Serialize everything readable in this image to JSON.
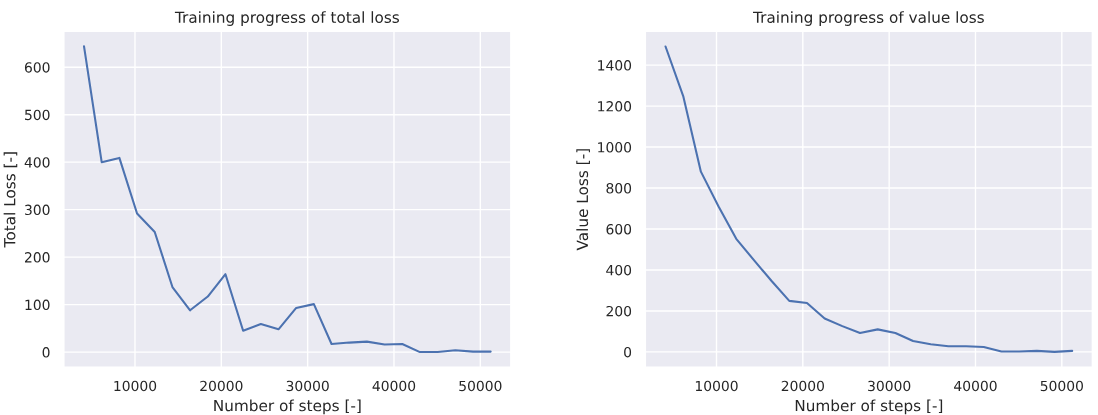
{
  "chart_data": [
    {
      "type": "line",
      "title": "Training progress of total loss",
      "xlabel": "Number of steps [-]",
      "ylabel": "Total Loss [-]",
      "x": [
        4096,
        6144,
        8192,
        10240,
        12288,
        14336,
        16384,
        18432,
        20480,
        22528,
        24576,
        26624,
        28672,
        30720,
        32768,
        34816,
        36864,
        38912,
        40960,
        43008,
        45056,
        47104,
        49152,
        51200
      ],
      "series": [
        {
          "color": "#4c72b0",
          "values": [
            644,
            400,
            409,
            292,
            253,
            137,
            88,
            117,
            164,
            45,
            59,
            48,
            93,
            101,
            17,
            20,
            22,
            16,
            17,
            0,
            0,
            4,
            1,
            1
          ]
        }
      ],
      "xlim": [
        1741,
        53555
      ],
      "xticks": [
        10000,
        20000,
        30000,
        40000,
        50000
      ],
      "ylim": [
        -32,
        676
      ],
      "yticks": [
        0,
        100,
        200,
        300,
        400,
        500,
        600
      ],
      "grid": true,
      "legend": false
    },
    {
      "type": "line",
      "title": "Training progress of value loss",
      "xlabel": "Number of steps [-]",
      "ylabel": "Value Loss [-]",
      "x": [
        4096,
        6144,
        8192,
        10240,
        12288,
        14336,
        16384,
        18432,
        20480,
        22528,
        24576,
        26624,
        28672,
        30720,
        32768,
        34816,
        36864,
        38912,
        40960,
        43008,
        45056,
        47104,
        49152,
        51200
      ],
      "series": [
        {
          "color": "#4c72b0",
          "values": [
            1491,
            1249,
            880,
            710,
            552,
            448,
            346,
            249,
            239,
            163,
            126,
            92,
            110,
            92,
            53,
            37,
            28,
            28,
            24,
            2,
            2,
            5,
            0,
            5
          ]
        }
      ],
      "xlim": [
        1741,
        53555
      ],
      "xticks": [
        10000,
        20000,
        30000,
        40000,
        50000
      ],
      "ylim": [
        -75,
        1566
      ],
      "yticks": [
        0,
        200,
        400,
        600,
        800,
        1000,
        1200,
        1400
      ],
      "grid": true,
      "legend": false
    }
  ]
}
